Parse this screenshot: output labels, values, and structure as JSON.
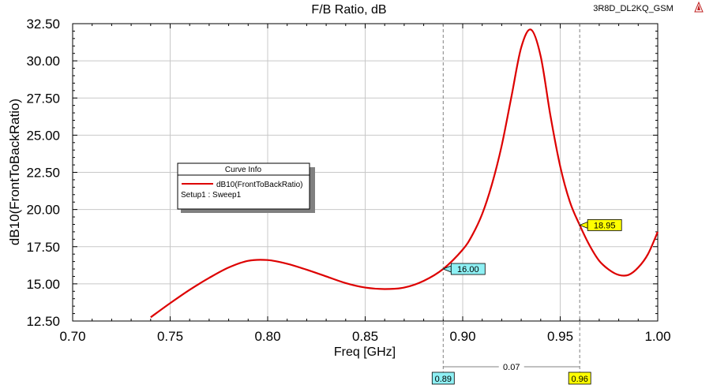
{
  "chart_data": {
    "type": "line",
    "title": "F/B Ratio, dB",
    "project_label": "3R8D_DL2KQ_GSM",
    "xlabel": "Freq [GHz]",
    "ylabel": "dB10(FrontToBackRatio)",
    "xlim": [
      0.7,
      1.0
    ],
    "ylim": [
      12.5,
      32.5
    ],
    "x_ticks": [
      "0.70",
      "0.75",
      "0.80",
      "0.85",
      "0.90",
      "0.95",
      "1.00"
    ],
    "y_ticks": [
      "12.50",
      "15.00",
      "17.50",
      "20.00",
      "22.50",
      "25.00",
      "27.50",
      "30.00",
      "32.50"
    ],
    "grid": true,
    "series": [
      {
        "name": "dB10(FrontToBackRatio)",
        "color": "#dd0000",
        "x": [
          0.74,
          0.75,
          0.76,
          0.77,
          0.78,
          0.79,
          0.8,
          0.81,
          0.82,
          0.83,
          0.84,
          0.85,
          0.86,
          0.87,
          0.88,
          0.89,
          0.9,
          0.905,
          0.91,
          0.915,
          0.92,
          0.925,
          0.93,
          0.935,
          0.94,
          0.945,
          0.95,
          0.955,
          0.96,
          0.965,
          0.97,
          0.975,
          0.98,
          0.985,
          0.99,
          0.995,
          1.0
        ],
        "y": [
          12.75,
          13.7,
          14.6,
          15.4,
          16.1,
          16.55,
          16.6,
          16.35,
          15.95,
          15.5,
          15.05,
          14.75,
          14.65,
          14.75,
          15.2,
          16.0,
          17.3,
          18.3,
          19.7,
          21.7,
          24.3,
          27.6,
          30.9,
          32.1,
          30.3,
          26.3,
          22.9,
          20.5,
          18.95,
          17.6,
          16.55,
          15.95,
          15.6,
          15.6,
          16.1,
          17.0,
          18.5
        ]
      }
    ],
    "legend": {
      "title": "Curve Info",
      "entry": "dB10(FrontToBackRatio)",
      "sub": "Setup1 : Sweep1",
      "placement": "left"
    },
    "markers": [
      {
        "x": 0.89,
        "y": 16.0,
        "label": "16.00",
        "x_label": "0.89",
        "style": "cyan"
      },
      {
        "x": 0.96,
        "y": 18.95,
        "label": "18.95",
        "x_label": "0.96",
        "style": "yellow"
      }
    ],
    "delta": {
      "label": "0.07"
    },
    "colors": {
      "cyan": "#8ef0f4",
      "yellow": "#ffff00",
      "curve": "#dd0000"
    }
  }
}
